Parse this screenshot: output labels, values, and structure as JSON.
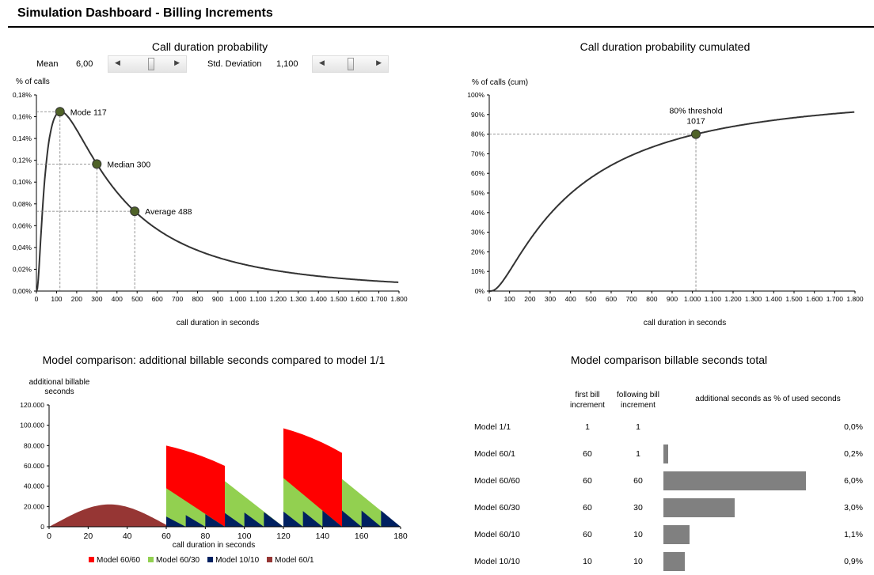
{
  "header": {
    "title": "Simulation Dashboard - Billing Increments"
  },
  "chart1": {
    "title": "Call duration probability",
    "mean_label": "Mean",
    "mean_value": "6,00",
    "sd_label": "Std. Deviation",
    "sd_value": "1,100",
    "ylabel": "% of calls",
    "xlabel": "call duration  in seconds",
    "yticks": [
      "0,00%",
      "0,02%",
      "0,04%",
      "0,06%",
      "0,08%",
      "0,10%",
      "0,12%",
      "0,14%",
      "0,16%",
      "0,18%"
    ],
    "xticks": [
      "0",
      "100",
      "200",
      "300",
      "400",
      "500",
      "600",
      "700",
      "800",
      "900",
      "1.000",
      "1.100",
      "1.200",
      "1.300",
      "1.400",
      "1.500",
      "1.600",
      "1.700",
      "1.800"
    ],
    "ann_mode": "Mode  117",
    "ann_median": "Median  300",
    "ann_average": "Average 488"
  },
  "chart2": {
    "title": "Call duration probability cumulated",
    "ylabel": "% of calls  (cum)",
    "xlabel": "call duration  in seconds",
    "yticks": [
      "0%",
      "10%",
      "20%",
      "30%",
      "40%",
      "50%",
      "60%",
      "70%",
      "80%",
      "90%",
      "100%"
    ],
    "xticks": [
      "0",
      "100",
      "200",
      "300",
      "400",
      "500",
      "600",
      "700",
      "800",
      "900",
      "1.000",
      "1.100",
      "1.200",
      "1.300",
      "1.400",
      "1.500",
      "1.600",
      "1.700",
      "1.800"
    ],
    "ann_threshold": "80% threshold",
    "ann_threshold_value": "1017"
  },
  "chart3": {
    "title": "Model comparison: additional billable seconds compared to model 1/1",
    "ylabel_line1": "additional  billable",
    "ylabel_line2": "seconds",
    "xlabel": "call duration  in seconds",
    "yticks": [
      "0",
      "20.000",
      "40.000",
      "60.000",
      "80.000",
      "100.000",
      "120.000"
    ],
    "xticks": [
      "0",
      "20",
      "40",
      "60",
      "80",
      "100",
      "120",
      "140",
      "160",
      "180"
    ],
    "legend": [
      "Model 60/60",
      "Model 60/30",
      "Model 10/10",
      "Model 60/1"
    ],
    "colors": {
      "m6060": "#ff0000",
      "m6030": "#92d050",
      "m1010": "#002060",
      "m601": "#963634"
    }
  },
  "chart4": {
    "title": "Model comparison billable seconds total",
    "col_first": [
      "first bill",
      "increment"
    ],
    "col_following": [
      "following bill",
      "increment"
    ],
    "col_additional": "additional seconds as % of used seconds",
    "rows": [
      {
        "model": "Model 1/1",
        "first": "1",
        "following": "1",
        "pct": "0,0%",
        "value": 0.0
      },
      {
        "model": "Model 60/1",
        "first": "60",
        "following": "1",
        "pct": "0,2%",
        "value": 0.2
      },
      {
        "model": "Model 60/60",
        "first": "60",
        "following": "60",
        "pct": "6,0%",
        "value": 6.0
      },
      {
        "model": "Model 60/30",
        "first": "60",
        "following": "30",
        "pct": "3,0%",
        "value": 3.0
      },
      {
        "model": "Model 60/10",
        "first": "60",
        "following": "10",
        "pct": "1,1%",
        "value": 1.1
      },
      {
        "model": "Model 10/10",
        "first": "10",
        "following": "10",
        "pct": "0,9%",
        "value": 0.9
      }
    ]
  },
  "chart_data": [
    {
      "type": "line",
      "title": "Call duration probability",
      "xlabel": "call duration  in seconds",
      "ylabel": "% of calls",
      "xlim": [
        0,
        1800
      ],
      "ylim": [
        0,
        0.18
      ],
      "distribution": "lognormal",
      "mu": 6.0,
      "sigma": 1.1,
      "annotations": [
        {
          "label": "Mode",
          "x": 117
        },
        {
          "label": "Median",
          "x": 300
        },
        {
          "label": "Average",
          "x": 488
        }
      ]
    },
    {
      "type": "line",
      "title": "Call duration probability cumulated",
      "xlabel": "call duration  in seconds",
      "ylabel": "% of calls  (cum)",
      "xlim": [
        0,
        1800
      ],
      "ylim": [
        0,
        100
      ],
      "distribution": "lognormal cdf",
      "mu": 6.0,
      "sigma": 1.1,
      "annotations": [
        {
          "label": "80% threshold",
          "x": 1017,
          "y": 80
        }
      ]
    },
    {
      "type": "area",
      "title": "Model comparison: additional billable seconds compared to model 1/1",
      "xlabel": "call duration  in seconds",
      "ylabel": "additional  billable seconds",
      "xlim": [
        0,
        180
      ],
      "ylim": [
        0,
        120000
      ],
      "series": [
        {
          "name": "Model 60/60",
          "peaks": [
            {
              "x": 60,
              "y": 80000
            },
            {
              "x": 120,
              "y": 97000
            }
          ]
        },
        {
          "name": "Model 60/30",
          "peaks": [
            {
              "x": 60,
              "y": 38000
            },
            {
              "x": 90,
              "y": 45000
            },
            {
              "x": 120,
              "y": 48000
            },
            {
              "x": 150,
              "y": 47000
            }
          ]
        },
        {
          "name": "Model 10/10",
          "peaks": [
            {
              "x": 60,
              "y": 10000
            },
            {
              "x": 70,
              "y": 11500
            },
            {
              "x": 80,
              "y": 12500
            },
            {
              "x": 90,
              "y": 13500
            },
            {
              "x": 100,
              "y": 14000
            },
            {
              "x": 110,
              "y": 14500
            },
            {
              "x": 120,
              "y": 15000
            },
            {
              "x": 130,
              "y": 15500
            },
            {
              "x": 140,
              "y": 16000
            },
            {
              "x": 150,
              "y": 16000
            },
            {
              "x": 160,
              "y": 16000
            },
            {
              "x": 170,
              "y": 16000
            }
          ]
        },
        {
          "name": "Model 60/1",
          "peaks": [
            {
              "x": 31,
              "y": 22000
            }
          ]
        }
      ]
    },
    {
      "type": "bar",
      "title": "Model comparison billable seconds total",
      "categories": [
        "Model 1/1",
        "Model 60/1",
        "Model 60/60",
        "Model 60/30",
        "Model 60/10",
        "Model 10/10"
      ],
      "values": [
        0.0,
        0.2,
        6.0,
        3.0,
        1.1,
        0.9
      ],
      "ylabel": "additional seconds as % of used seconds"
    }
  ]
}
